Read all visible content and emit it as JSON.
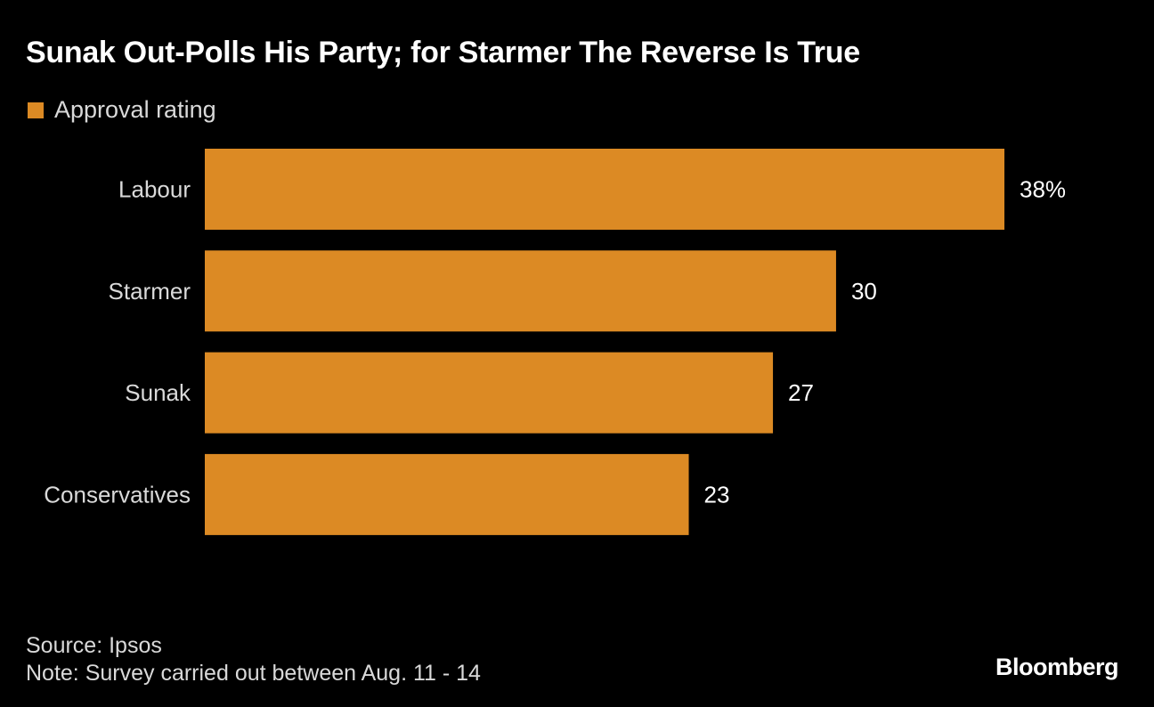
{
  "chart_data": {
    "type": "bar",
    "orientation": "horizontal",
    "title": "Sunak Out-Polls His Party; for Starmer The Reverse Is True",
    "legend": "Approval rating",
    "categories": [
      "Labour",
      "Starmer",
      "Sunak",
      "Conservatives"
    ],
    "values": [
      38,
      30,
      27,
      23
    ],
    "value_labels": [
      "38%",
      "30",
      "27",
      "23"
    ],
    "bar_color": "#dc8a24",
    "xlim": [
      0,
      38
    ],
    "xlabel": "",
    "ylabel": ""
  },
  "footer": {
    "source": "Source: Ipsos",
    "note": "Note: Survey carried out between Aug. 11 - 14",
    "brand": "Bloomberg"
  }
}
